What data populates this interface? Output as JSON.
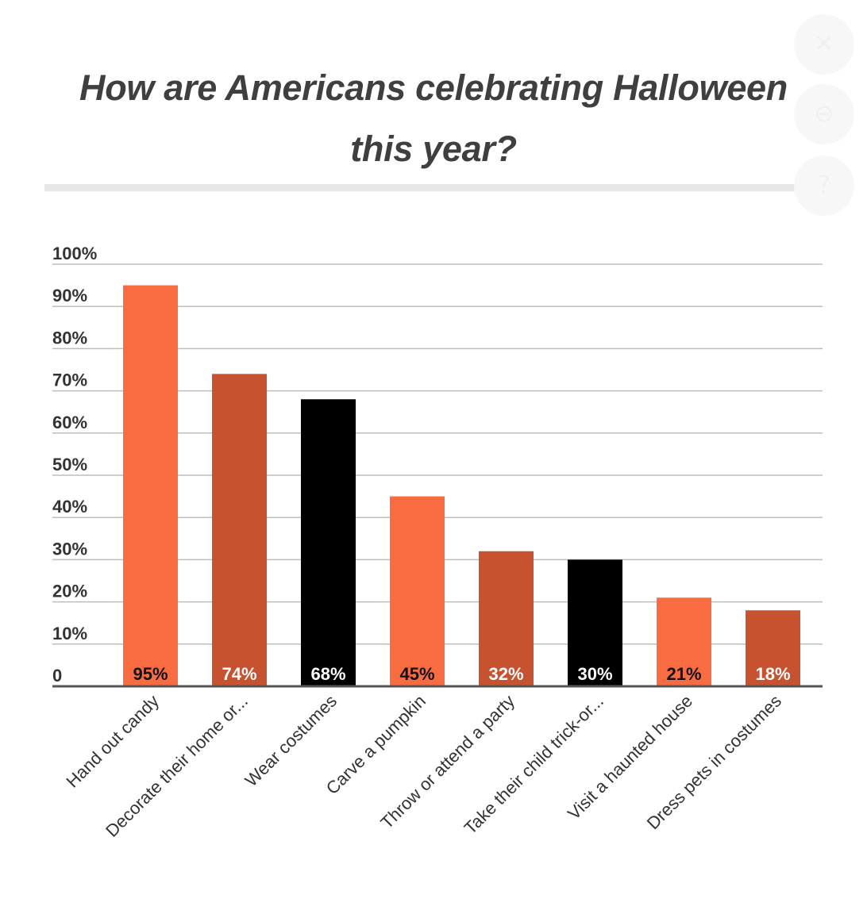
{
  "page": {
    "controls": [
      {
        "name": "close-control",
        "glyph": "✕"
      },
      {
        "name": "zoom-control",
        "glyph": "⊖"
      },
      {
        "name": "info-control",
        "glyph": "?"
      }
    ]
  },
  "chart_data": {
    "type": "bar",
    "title_line1": "How are Americans celebrating Halloween",
    "title_line2": "this year?",
    "xlabel": "",
    "ylabel": "",
    "ylim": [
      0,
      100
    ],
    "yticks": [
      {
        "value": 0,
        "label": "0"
      },
      {
        "value": 10,
        "label": "10%"
      },
      {
        "value": 20,
        "label": "20%"
      },
      {
        "value": 30,
        "label": "30%"
      },
      {
        "value": 40,
        "label": "40%"
      },
      {
        "value": 50,
        "label": "50%"
      },
      {
        "value": 60,
        "label": "60%"
      },
      {
        "value": 70,
        "label": "70%"
      },
      {
        "value": 80,
        "label": "80%"
      },
      {
        "value": 90,
        "label": "90%"
      },
      {
        "value": 100,
        "label": "100%"
      }
    ],
    "grid": true,
    "legend": "none",
    "categories": [
      "Hand out candy",
      "Decorate their home or...",
      "Wear costumes",
      "Carve a pumpkin",
      "Throw or attend a party",
      "Take their child trick-or...",
      "Visit a haunted house",
      "Dress pets in costumes"
    ],
    "values": [
      95,
      74,
      68,
      45,
      32,
      30,
      21,
      18
    ],
    "value_labels": [
      "95%",
      "74%",
      "68%",
      "45%",
      "32%",
      "30%",
      "21%",
      "18%"
    ],
    "bar_colors": [
      "#f96b40",
      "#c65230",
      "#000000",
      "#f96b40",
      "#c65230",
      "#000000",
      "#f96b40",
      "#c65230"
    ],
    "label_colors": [
      "#111111",
      "#ffffff",
      "#ffffff",
      "#111111",
      "#ffffff",
      "#ffffff",
      "#111111",
      "#ffffff"
    ],
    "colors": {
      "grid": "#bdbdbd",
      "axis": "#555555",
      "tick_text": "#333333"
    }
  }
}
